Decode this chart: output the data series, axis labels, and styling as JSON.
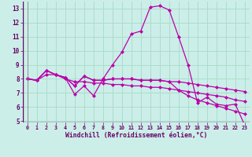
{
  "title": "",
  "xlabel": "Windchill (Refroidissement éolien,°C)",
  "x_ticks": [
    0,
    1,
    2,
    3,
    4,
    5,
    6,
    7,
    8,
    9,
    10,
    11,
    12,
    13,
    14,
    15,
    16,
    17,
    18,
    19,
    20,
    21,
    22,
    23
  ],
  "ylim": [
    4.9,
    13.5
  ],
  "yticks": [
    5,
    6,
    7,
    8,
    9,
    10,
    11,
    12,
    13
  ],
  "background_color": "#cceee8",
  "grid_color": "#aaddcc",
  "line_color": "#bb00aa",
  "line1": [
    8.0,
    7.9,
    8.6,
    8.3,
    8.1,
    6.9,
    7.5,
    6.8,
    8.0,
    9.0,
    9.9,
    11.2,
    11.4,
    13.1,
    13.2,
    12.9,
    11.0,
    9.0,
    6.3,
    6.7,
    6.2,
    6.1,
    6.2,
    4.7
  ],
  "line2": [
    8.0,
    7.9,
    8.6,
    8.3,
    8.1,
    7.5,
    8.2,
    7.9,
    7.9,
    8.0,
    8.0,
    8.0,
    7.9,
    7.9,
    7.9,
    7.8,
    7.8,
    7.7,
    7.6,
    7.5,
    7.4,
    7.3,
    7.2,
    7.1
  ],
  "line3": [
    8.0,
    7.9,
    8.6,
    8.3,
    8.1,
    7.5,
    8.2,
    7.9,
    7.9,
    8.0,
    8.0,
    8.0,
    7.9,
    7.9,
    7.9,
    7.8,
    7.2,
    6.8,
    6.5,
    6.3,
    6.1,
    5.9,
    5.7,
    5.5
  ],
  "line4": [
    8.0,
    7.9,
    8.3,
    8.3,
    8.0,
    7.8,
    7.8,
    7.7,
    7.7,
    7.6,
    7.6,
    7.5,
    7.5,
    7.4,
    7.4,
    7.3,
    7.2,
    7.1,
    7.0,
    6.9,
    6.8,
    6.7,
    6.5,
    6.4
  ],
  "marker_size": 2.5,
  "linewidth": 0.9
}
